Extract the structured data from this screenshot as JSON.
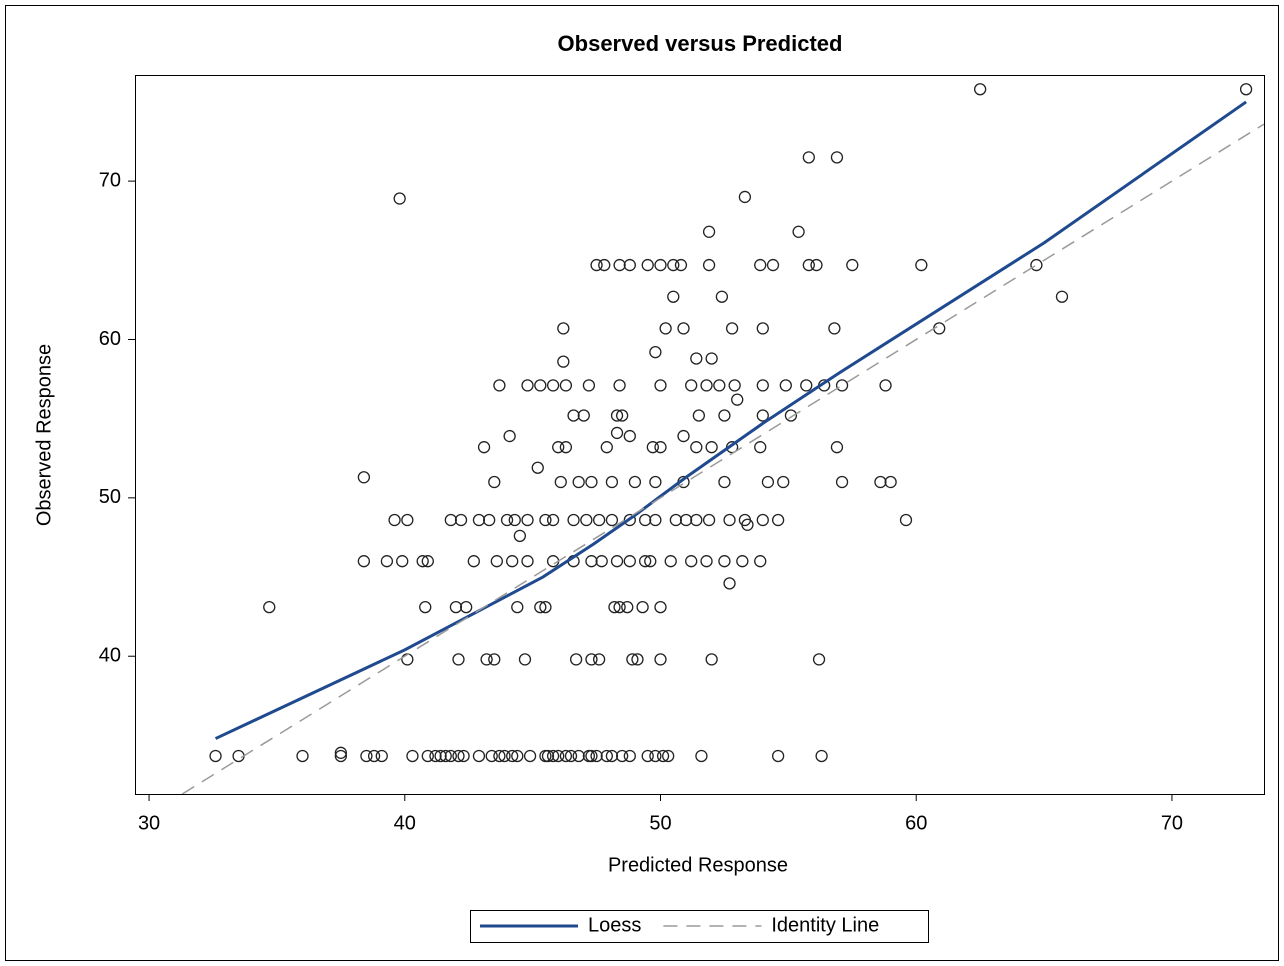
{
  "chart_data": {
    "type": "scatter",
    "title": "Observed versus Predicted",
    "x_label": "Predicted Response",
    "y_label": "Observed Response",
    "xlim": [
      29.45,
      73.6
    ],
    "ylim": [
      31.3,
      76.7
    ],
    "xticks": [
      30,
      40,
      50,
      60,
      70
    ],
    "yticks": [
      40,
      50,
      60,
      70
    ],
    "marker_color": "#222222",
    "legend": "bottom",
    "x": [
      32.6,
      33.5,
      36.0,
      37.5,
      38.5,
      38.8,
      39.1,
      40.3,
      40.9,
      41.2,
      41.4,
      41.6,
      41.8,
      42.1,
      42.3,
      42.9,
      43.4,
      43.7,
      43.9,
      44.2,
      44.4,
      44.9,
      45.5,
      45.6,
      45.8,
      46.0,
      46.3,
      46.5,
      46.8,
      47.2,
      47.3,
      47.5,
      47.9,
      48.1,
      48.5,
      48.8,
      49.5,
      49.8,
      50.1,
      50.3,
      51.6,
      54.6,
      56.3,
      40.1,
      42.1,
      43.2,
      43.5,
      44.7,
      46.7,
      47.3,
      47.6,
      48.9,
      49.1,
      50.0,
      52.0,
      56.2,
      34.7,
      40.8,
      42.0,
      42.4,
      44.4,
      45.3,
      45.5,
      48.2,
      48.4,
      48.7,
      49.3,
      50.0,
      38.4,
      39.3,
      39.9,
      40.7,
      40.9,
      42.7,
      43.6,
      44.2,
      44.8,
      45.8,
      46.6,
      47.3,
      47.7,
      48.3,
      48.8,
      49.4,
      49.6,
      50.4,
      51.2,
      51.8,
      52.5,
      53.2,
      53.9,
      39.6,
      40.1,
      41.8,
      42.2,
      42.9,
      43.3,
      44.0,
      44.3,
      44.8,
      45.5,
      45.8,
      46.6,
      47.1,
      47.6,
      48.1,
      48.8,
      49.4,
      49.8,
      50.6,
      51.0,
      51.4,
      51.9,
      52.7,
      53.3,
      54.0,
      54.6,
      59.6,
      43.5,
      46.1,
      46.8,
      47.3,
      48.1,
      49.0,
      49.8,
      50.9,
      52.5,
      54.2,
      54.8,
      58.6,
      59.0,
      57.1,
      43.1,
      46.0,
      46.3,
      47.9,
      49.7,
      50.0,
      51.4,
      52.0,
      52.8,
      53.9,
      56.9,
      46.6,
      47.0,
      48.3,
      48.5,
      51.5,
      52.5,
      54.0,
      55.1,
      43.7,
      44.8,
      45.3,
      45.8,
      46.3,
      47.2,
      48.4,
      50.0,
      51.2,
      51.8,
      52.3,
      52.9,
      54.0,
      54.9,
      55.7,
      56.4,
      57.1,
      58.8,
      51.4,
      52.0,
      46.2,
      50.2,
      50.9,
      52.8,
      54.0,
      56.8,
      60.9,
      50.5,
      52.4,
      65.7,
      47.5,
      47.8,
      48.4,
      48.8,
      49.5,
      50.0,
      50.5,
      50.8,
      51.9,
      53.9,
      54.4,
      55.8,
      56.1,
      57.5,
      60.2,
      64.7,
      37.5,
      38.4,
      46.2,
      39.8,
      53.3,
      55.8,
      56.9,
      55.4,
      51.9,
      62.5,
      72.9,
      49.8,
      44.1,
      45.2,
      44.5,
      52.7,
      53.4,
      53.0,
      48.3,
      48.8,
      50.9
    ],
    "values": [
      33.7,
      33.7,
      33.7,
      33.7,
      33.7,
      33.7,
      33.7,
      33.7,
      33.7,
      33.7,
      33.7,
      33.7,
      33.7,
      33.7,
      33.7,
      33.7,
      33.7,
      33.7,
      33.7,
      33.7,
      33.7,
      33.7,
      33.7,
      33.7,
      33.7,
      33.7,
      33.7,
      33.7,
      33.7,
      33.7,
      33.7,
      33.7,
      33.7,
      33.7,
      33.7,
      33.7,
      33.7,
      33.7,
      33.7,
      33.7,
      33.7,
      33.7,
      33.7,
      39.8,
      39.8,
      39.8,
      39.8,
      39.8,
      39.8,
      39.8,
      39.8,
      39.8,
      39.8,
      39.8,
      39.8,
      39.8,
      43.1,
      43.1,
      43.1,
      43.1,
      43.1,
      43.1,
      43.1,
      43.1,
      43.1,
      43.1,
      43.1,
      43.1,
      46.0,
      46.0,
      46.0,
      46.0,
      46.0,
      46.0,
      46.0,
      46.0,
      46.0,
      46.0,
      46.0,
      46.0,
      46.0,
      46.0,
      46.0,
      46.0,
      46.0,
      46.0,
      46.0,
      46.0,
      46.0,
      46.0,
      46.0,
      48.6,
      48.6,
      48.6,
      48.6,
      48.6,
      48.6,
      48.6,
      48.6,
      48.6,
      48.6,
      48.6,
      48.6,
      48.6,
      48.6,
      48.6,
      48.6,
      48.6,
      48.6,
      48.6,
      48.6,
      48.6,
      48.6,
      48.6,
      48.6,
      48.6,
      48.6,
      48.6,
      51.0,
      51.0,
      51.0,
      51.0,
      51.0,
      51.0,
      51.0,
      51.0,
      51.0,
      51.0,
      51.0,
      51.0,
      51.0,
      51.0,
      53.2,
      53.2,
      53.2,
      53.2,
      53.2,
      53.2,
      53.2,
      53.2,
      53.2,
      53.2,
      53.2,
      55.2,
      55.2,
      55.2,
      55.2,
      55.2,
      55.2,
      55.2,
      55.2,
      57.1,
      57.1,
      57.1,
      57.1,
      57.1,
      57.1,
      57.1,
      57.1,
      57.1,
      57.1,
      57.1,
      57.1,
      57.1,
      57.1,
      57.1,
      57.1,
      57.1,
      57.1,
      58.8,
      58.8,
      60.7,
      60.7,
      60.7,
      60.7,
      60.7,
      60.7,
      60.7,
      62.7,
      62.7,
      62.7,
      64.7,
      64.7,
      64.7,
      64.7,
      64.7,
      64.7,
      64.7,
      64.7,
      64.7,
      64.7,
      64.7,
      64.7,
      64.7,
      64.7,
      64.7,
      64.7,
      33.9,
      51.3,
      58.6,
      68.9,
      69.0,
      71.5,
      71.5,
      66.8,
      66.8,
      75.8,
      75.8,
      59.2,
      53.9,
      51.9,
      47.6,
      44.6,
      48.3,
      56.2,
      54.1,
      53.9,
      53.9
    ],
    "lines": [
      {
        "name": "Loess",
        "color": "#1f4a8f",
        "style": "solid",
        "x": [
          32.6,
          40,
          45.4,
          47.4,
          49,
          51,
          54,
          57,
          65,
          72.9
        ],
        "values": [
          34.8,
          40.4,
          45.0,
          47.1,
          48.9,
          51.3,
          54.7,
          57.9,
          66.1,
          75.0
        ]
      },
      {
        "name": "Identity Line",
        "color": "#9a9a9a",
        "style": "dashed",
        "x": [
          31.3,
          73.6
        ],
        "values": [
          31.3,
          73.6
        ]
      }
    ]
  }
}
